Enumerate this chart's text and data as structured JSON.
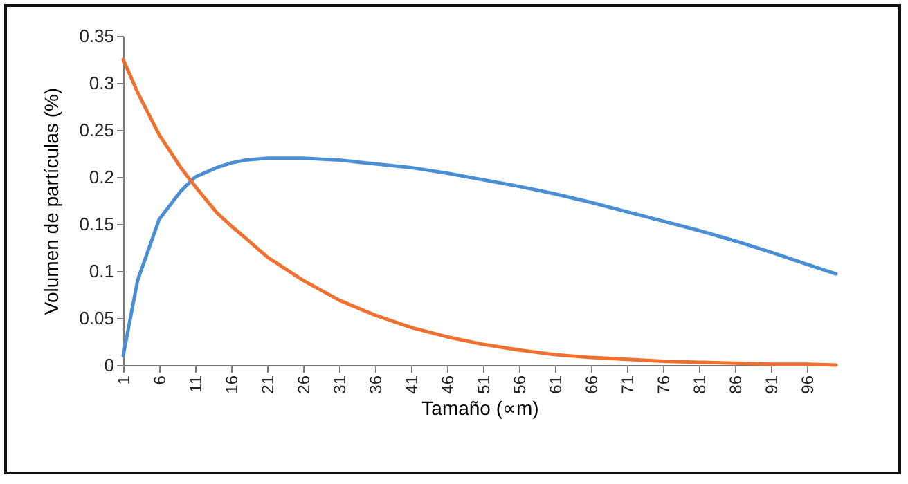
{
  "chart_data": {
    "type": "line",
    "xlabel": "Tamaño (∝m)",
    "ylabel": "Volumen de partículas (%)",
    "x": [
      1,
      3,
      6,
      9,
      11,
      14,
      16,
      18,
      21,
      26,
      31,
      36,
      41,
      46,
      51,
      56,
      61,
      66,
      71,
      76,
      81,
      86,
      91,
      96,
      100
    ],
    "series": [
      {
        "color": "#4a8fd4",
        "values": [
          0.01,
          0.09,
          0.155,
          0.185,
          0.2,
          0.21,
          0.215,
          0.218,
          0.22,
          0.22,
          0.218,
          0.214,
          0.21,
          0.204,
          0.197,
          0.19,
          0.182,
          0.173,
          0.163,
          0.153,
          0.143,
          0.132,
          0.12,
          0.107,
          0.097
        ]
      },
      {
        "color": "#f07030",
        "values": [
          0.325,
          0.29,
          0.245,
          0.21,
          0.19,
          0.162,
          0.148,
          0.135,
          0.115,
          0.09,
          0.069,
          0.053,
          0.04,
          0.03,
          0.022,
          0.016,
          0.011,
          0.008,
          0.006,
          0.004,
          0.003,
          0.002,
          0.001,
          0.001,
          0
        ]
      }
    ],
    "xlim": [
      1,
      100
    ],
    "xticks": [
      1,
      6,
      11,
      16,
      21,
      26,
      31,
      36,
      41,
      46,
      51,
      56,
      61,
      66,
      71,
      76,
      81,
      86,
      91,
      96
    ],
    "ylim": [
      0,
      0.35
    ],
    "yticks": [
      0,
      0.05,
      0.1,
      0.15,
      0.2,
      0.25,
      0.3,
      0.35
    ],
    "grid": false,
    "legend": false,
    "marker": "none",
    "line_style": "solid"
  }
}
